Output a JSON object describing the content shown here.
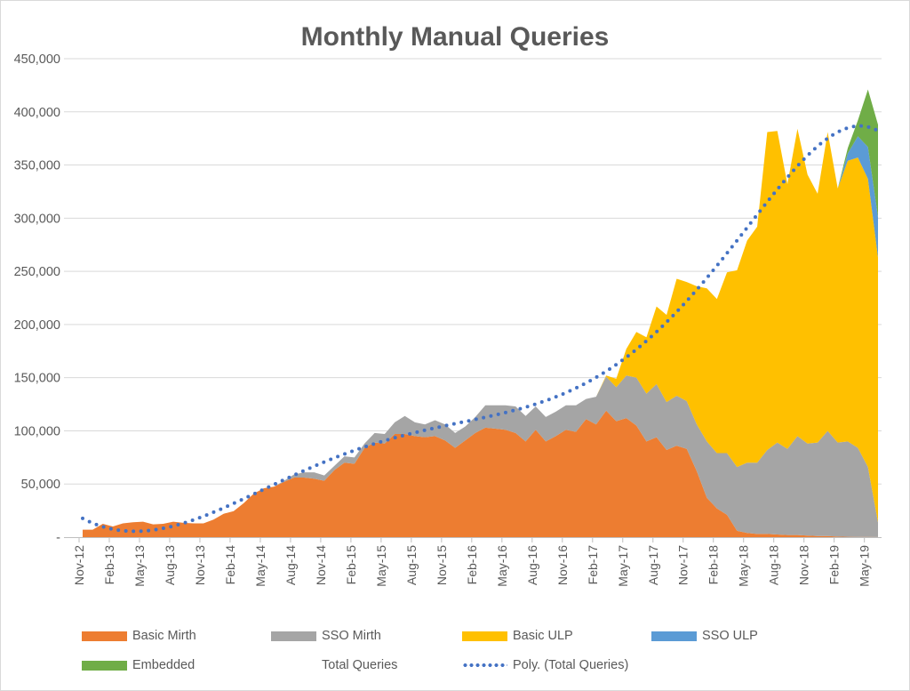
{
  "chart_data": {
    "type": "area",
    "stacked": true,
    "title": "Monthly Manual Queries",
    "xlabel": "",
    "ylabel": "",
    "ylim": [
      0,
      450000
    ],
    "y_ticks": [
      0,
      50000,
      100000,
      150000,
      200000,
      250000,
      300000,
      350000,
      400000,
      450000
    ],
    "y_tick_labels": [
      "-",
      "50,000",
      "100,000",
      "150,000",
      "200,000",
      "250,000",
      "300,000",
      "350,000",
      "400,000",
      "450,000"
    ],
    "x_tick_interval_months": 3,
    "grid": "horizontal",
    "legend_position": "bottom",
    "categories": [
      "Nov-12",
      "Dec-12",
      "Jan-13",
      "Feb-13",
      "Mar-13",
      "Apr-13",
      "May-13",
      "Jun-13",
      "Jul-13",
      "Aug-13",
      "Sep-13",
      "Oct-13",
      "Nov-13",
      "Dec-13",
      "Jan-14",
      "Feb-14",
      "Mar-14",
      "Apr-14",
      "May-14",
      "Jun-14",
      "Jul-14",
      "Aug-14",
      "Sep-14",
      "Oct-14",
      "Nov-14",
      "Dec-14",
      "Jan-15",
      "Feb-15",
      "Mar-15",
      "Apr-15",
      "May-15",
      "Jun-15",
      "Jul-15",
      "Aug-15",
      "Sep-15",
      "Oct-15",
      "Nov-15",
      "Dec-15",
      "Jan-16",
      "Feb-16",
      "Mar-16",
      "Apr-16",
      "May-16",
      "Jun-16",
      "Jul-16",
      "Aug-16",
      "Sep-16",
      "Oct-16",
      "Nov-16",
      "Dec-16",
      "Jan-17",
      "Feb-17",
      "Mar-17",
      "Apr-17",
      "May-17",
      "Jun-17",
      "Jul-17",
      "Aug-17",
      "Sep-17",
      "Oct-17",
      "Nov-17",
      "Dec-17",
      "Jan-18",
      "Feb-18",
      "Mar-18",
      "Apr-18",
      "May-18",
      "Jun-18",
      "Jul-18",
      "Aug-18",
      "Sep-18",
      "Oct-18",
      "Nov-18",
      "Dec-18",
      "Jan-19",
      "Feb-19",
      "Mar-19",
      "Apr-19",
      "May-19",
      "Jun-19"
    ],
    "series": [
      {
        "name": "Basic Mirth",
        "color": "#ED7D31",
        "values": [
          7000,
          7000,
          12500,
          10000,
          13000,
          14000,
          14500,
          12000,
          12500,
          14500,
          13500,
          13000,
          13000,
          16500,
          22000,
          24500,
          32000,
          41000,
          46000,
          47500,
          52000,
          56000,
          56000,
          55000,
          53000,
          63000,
          70000,
          69000,
          84000,
          89000,
          88000,
          97000,
          97000,
          95000,
          94000,
          95000,
          91000,
          84000,
          91000,
          98000,
          103000,
          102000,
          101000,
          98000,
          90000,
          101000,
          90000,
          95000,
          101000,
          99000,
          111000,
          106000,
          119000,
          109000,
          112000,
          105000,
          90000,
          94000,
          82000,
          86000,
          83000,
          62000,
          37000,
          27000,
          21000,
          6000,
          4000,
          3000,
          3000,
          2500,
          2000,
          2000,
          1500,
          1000,
          1000,
          500,
          300,
          200,
          200,
          100
        ]
      },
      {
        "name": "SSO Mirth",
        "color": "#A5A5A5",
        "values": [
          0,
          0,
          0,
          0,
          0,
          0,
          0,
          0,
          0,
          0,
          0,
          0,
          0,
          0,
          0,
          0,
          0,
          0,
          0,
          0,
          1000,
          3000,
          5000,
          6000,
          5000,
          4000,
          6000,
          6000,
          4000,
          9000,
          9000,
          11000,
          17000,
          13000,
          12000,
          15000,
          15000,
          14000,
          13000,
          15000,
          21000,
          22000,
          23000,
          25000,
          24000,
          22000,
          23000,
          23000,
          23000,
          25000,
          19000,
          26000,
          32000,
          32000,
          40000,
          45000,
          45000,
          50000,
          45000,
          47000,
          45000,
          44000,
          53000,
          52000,
          58000,
          60000,
          66000,
          67000,
          79000,
          86500,
          81000,
          93000,
          86500,
          88000,
          99000,
          88500,
          89700,
          83800,
          65800,
          13900
        ]
      },
      {
        "name": "Basic ULP",
        "color": "#FFC000",
        "values": [
          0,
          0,
          0,
          0,
          0,
          0,
          0,
          0,
          0,
          0,
          0,
          0,
          0,
          0,
          0,
          0,
          0,
          0,
          0,
          0,
          0,
          0,
          0,
          0,
          0,
          0,
          0,
          0,
          0,
          0,
          0,
          0,
          0,
          0,
          0,
          0,
          0,
          0,
          0,
          0,
          0,
          0,
          0,
          0,
          0,
          0,
          0,
          0,
          0,
          0,
          0,
          0,
          1000,
          8000,
          25000,
          43000,
          53000,
          73000,
          82000,
          110000,
          112000,
          130000,
          144000,
          145000,
          170000,
          185000,
          209000,
          222000,
          299000,
          293000,
          249000,
          289000,
          253000,
          234000,
          281000,
          239000,
          264000,
          273000,
          271000,
          249000
        ]
      },
      {
        "name": "SSO ULP",
        "color": "#5B9BD5",
        "values": [
          0,
          0,
          0,
          0,
          0,
          0,
          0,
          0,
          0,
          0,
          0,
          0,
          0,
          0,
          0,
          0,
          0,
          0,
          0,
          0,
          0,
          0,
          0,
          0,
          0,
          0,
          0,
          0,
          0,
          0,
          0,
          0,
          0,
          0,
          0,
          0,
          0,
          0,
          0,
          0,
          0,
          0,
          0,
          0,
          0,
          0,
          0,
          0,
          0,
          0,
          0,
          0,
          0,
          0,
          0,
          0,
          0,
          0,
          0,
          0,
          0,
          0,
          0,
          0,
          0,
          0,
          0,
          0,
          0,
          0,
          0,
          0,
          0,
          0,
          0,
          0,
          7000,
          20000,
          30000,
          38000
        ]
      },
      {
        "name": "Embedded",
        "color": "#70AD47",
        "values": [
          0,
          0,
          0,
          0,
          0,
          0,
          0,
          0,
          0,
          0,
          0,
          0,
          0,
          0,
          0,
          0,
          0,
          0,
          0,
          0,
          0,
          0,
          0,
          0,
          0,
          0,
          0,
          0,
          0,
          0,
          0,
          0,
          0,
          0,
          0,
          0,
          0,
          0,
          0,
          0,
          0,
          0,
          0,
          0,
          0,
          0,
          0,
          0,
          0,
          0,
          0,
          0,
          0,
          0,
          0,
          0,
          0,
          0,
          0,
          0,
          0,
          0,
          0,
          0,
          0,
          0,
          0,
          0,
          0,
          0,
          0,
          0,
          0,
          0,
          0,
          0,
          5000,
          15000,
          54000,
          87000
        ]
      }
    ],
    "total_series_name": "Total Queries",
    "trendline": {
      "name": "Poly. (Total Queries)",
      "type": "polynomial",
      "color": "#4472C4",
      "style": "dotted"
    }
  }
}
